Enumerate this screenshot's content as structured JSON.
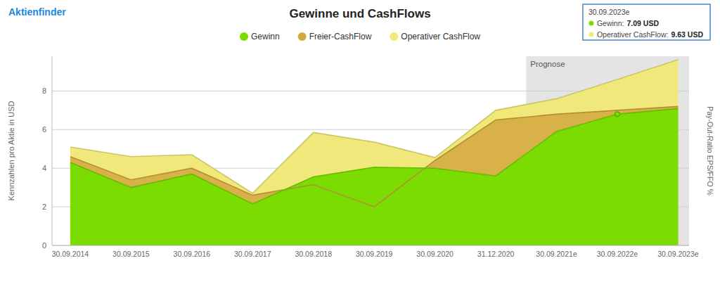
{
  "chart_data": {
    "type": "area",
    "title": "Gewinne und CashFlows",
    "y_label": "Kennzahlen pro Aktie in USD",
    "y2_label": "Pay-Out-Ratio EPS/FFO %",
    "source": "Aktienfinder",
    "categories": [
      "30.09.2014",
      "30.09.2015",
      "30.09.2016",
      "30.09.2017",
      "30.09.2018",
      "30.09.2019",
      "30.09.2020",
      "31.12.2020",
      "30.09.2021e",
      "30.09.2022e",
      "30.09.2023e"
    ],
    "series": [
      {
        "name": "Gewinn",
        "color": "#7adc00",
        "values": [
          4.3,
          3.0,
          3.7,
          2.15,
          3.55,
          4.05,
          4.0,
          3.6,
          5.9,
          6.8,
          7.09
        ]
      },
      {
        "name": "Freier-CashFlow",
        "color": "#d4a840",
        "values": [
          4.6,
          3.4,
          4.0,
          2.6,
          3.15,
          2.0,
          4.4,
          6.5,
          6.8,
          7.0,
          7.2
        ]
      },
      {
        "name": "Operativer CashFlow",
        "color": "#f0e87a",
        "values": [
          5.1,
          4.6,
          4.7,
          2.7,
          5.85,
          5.35,
          4.55,
          7.0,
          7.6,
          8.6,
          9.63
        ]
      }
    ],
    "ylim": [
      0,
      9.8
    ],
    "yticks": [
      0,
      2,
      4,
      6,
      8
    ],
    "grid": true,
    "legend": "top",
    "forecast": {
      "label": "Prognose",
      "start": "30.09.2021e"
    },
    "highlight": {
      "series": "Gewinn",
      "category": "30.09.2022e"
    },
    "tooltip": {
      "title": "30.09.2023e",
      "rows": [
        {
          "label": "Gewinn:",
          "series": "Gewinn",
          "value": 7.09,
          "value_label": "7.09 USD"
        },
        {
          "label": "Operativer CashFlow:",
          "series": "Operativer CashFlow",
          "value": 9.63,
          "value_label": "9.63 USD"
        }
      ]
    }
  }
}
